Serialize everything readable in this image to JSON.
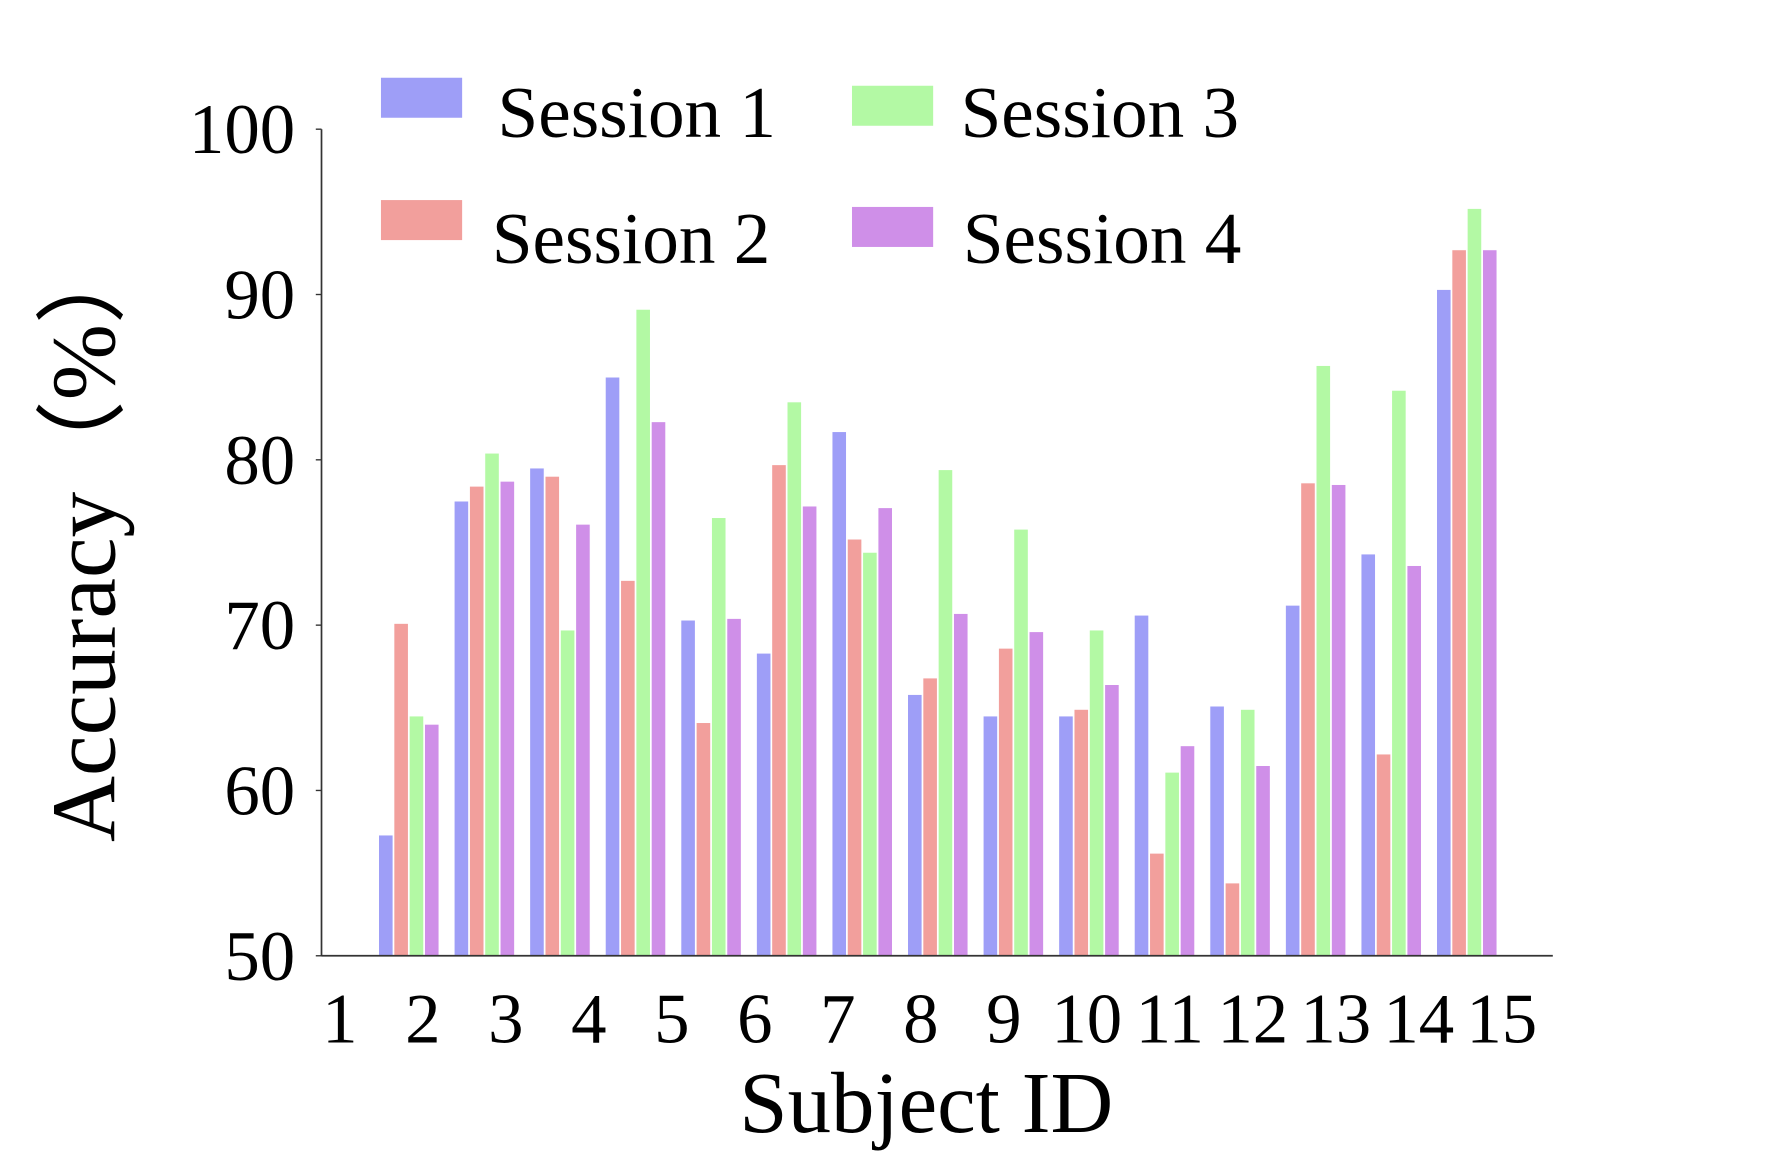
{
  "chart_data": {
    "type": "bar",
    "title": "",
    "xlabel": "Subject ID",
    "ylabel": "Accuracy（%）",
    "ylim": [
      50,
      100
    ],
    "yticks": [
      "50",
      "60",
      "70",
      "80",
      "90",
      "100"
    ],
    "categories": [
      "1",
      "2",
      "3",
      "4",
      "5",
      "6",
      "7",
      "8",
      "9",
      "10",
      "11",
      "12",
      "13",
      "14",
      "15"
    ],
    "legend_position": "top",
    "grid": false,
    "series": [
      {
        "name": "Session 1",
        "color": "#9e9ef7",
        "values": [
          57.3,
          77.5,
          79.5,
          85.0,
          70.3,
          68.3,
          81.7,
          65.8,
          64.5,
          64.5,
          70.6,
          65.1,
          71.2,
          74.3,
          90.3
        ]
      },
      {
        "name": "Session 2",
        "color": "#f29f9c",
        "values": [
          70.1,
          78.4,
          79.0,
          72.7,
          64.1,
          79.7,
          75.2,
          66.8,
          68.6,
          64.9,
          56.2,
          54.4,
          78.6,
          62.2,
          92.7
        ]
      },
      {
        "name": "Session 3",
        "color": "#b3f9a4",
        "values": [
          64.5,
          80.4,
          69.7,
          89.1,
          76.5,
          83.5,
          74.4,
          79.4,
          75.8,
          69.7,
          61.1,
          64.9,
          85.7,
          84.2,
          95.2
        ]
      },
      {
        "name": "Session 4",
        "color": "#cf8fe8",
        "values": [
          64.0,
          78.7,
          76.1,
          82.3,
          70.4,
          77.2,
          77.1,
          70.7,
          69.6,
          66.4,
          62.7,
          61.5,
          78.5,
          73.6,
          92.7
        ]
      }
    ]
  }
}
